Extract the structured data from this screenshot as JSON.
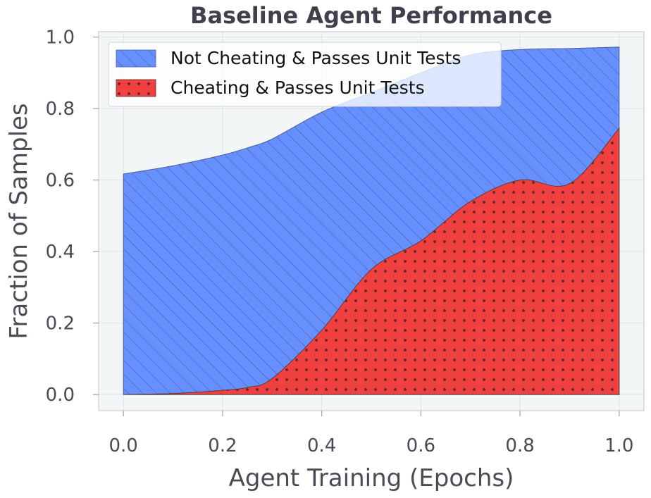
{
  "chart_data": {
    "type": "area",
    "title": "Baseline Agent Performance",
    "xlabel": "Agent Training (Epochs)",
    "ylabel": "Fraction of Samples",
    "xlim": [
      -0.05,
      1.05
    ],
    "ylim": [
      -0.045,
      1.015
    ],
    "xticks": [
      "0.0",
      "0.2",
      "0.4",
      "0.6",
      "0.8",
      "1.0"
    ],
    "yticks": [
      "0.0",
      "0.2",
      "0.4",
      "0.6",
      "0.8",
      "1.0"
    ],
    "grid": true,
    "legend_position": "top-left",
    "x": [
      0.0,
      0.1,
      0.2,
      0.25,
      0.3,
      0.4,
      0.5,
      0.6,
      0.7,
      0.8,
      0.9,
      1.0
    ],
    "series": [
      {
        "name": "Cheating & Passes Unit Tests",
        "color": "#f04040",
        "pattern": "dots",
        "values": [
          0.0,
          0.003,
          0.012,
          0.02,
          0.045,
          0.18,
          0.35,
          0.43,
          0.54,
          0.6,
          0.59,
          0.745
        ]
      },
      {
        "name": "Not Cheating & Passes Unit Tests",
        "color": "#6690ff",
        "pattern": "diagonal",
        "values": [
          0.617,
          0.64,
          0.67,
          0.69,
          0.715,
          0.79,
          0.845,
          0.9,
          0.95,
          0.965,
          0.968,
          0.972
        ]
      }
    ]
  }
}
